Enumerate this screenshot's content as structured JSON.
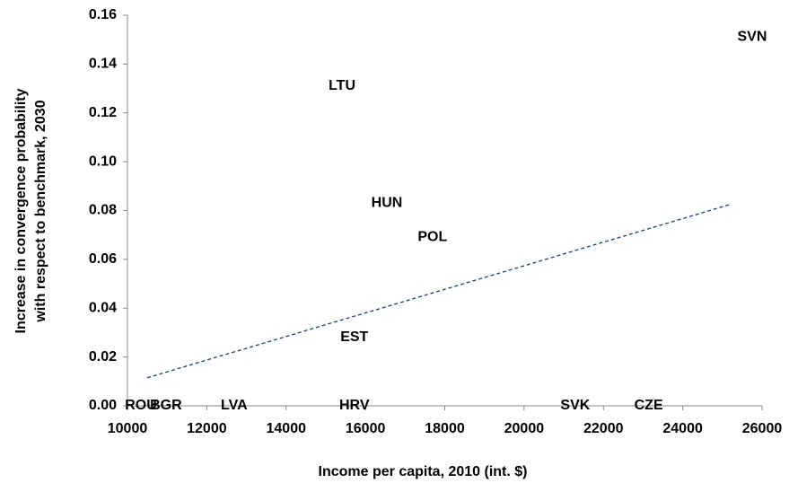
{
  "chart_data": {
    "type": "scatter",
    "xlabel": "Income per capita, 2010 (int. $)",
    "ylabel": [
      "Increase in convergence probability",
      "with respect to benchmark, 2030"
    ],
    "points": [
      {
        "label": "ROU",
        "x": 10340,
        "y": 0
      },
      {
        "label": "BGR",
        "x": 10970,
        "y": 0
      },
      {
        "label": "LVA",
        "x": 12690,
        "y": 0
      },
      {
        "label": "HRV",
        "x": 15720,
        "y": 0
      },
      {
        "label": "SVK",
        "x": 21290,
        "y": 0
      },
      {
        "label": "CZE",
        "x": 23140,
        "y": 0
      },
      {
        "label": "SVN",
        "x": 25750,
        "y": 0.151
      },
      {
        "label": "LTU",
        "x": 15410,
        "y": 0.131
      },
      {
        "label": "HUN",
        "x": 16540,
        "y": 0.083
      },
      {
        "label": "POL",
        "x": 17690,
        "y": 0.069
      },
      {
        "label": "EST",
        "x": 15720,
        "y": 0.028
      }
    ],
    "trendline": {
      "x": [
        10500,
        25200
      ],
      "values": [
        0.0115,
        0.0825
      ],
      "color": "#1f3f6e"
    },
    "xlim": [
      10000,
      26000
    ],
    "xticks": [
      10000,
      12000,
      14000,
      16000,
      18000,
      20000,
      22000,
      24000,
      26000
    ],
    "ylim": [
      0,
      0.16
    ],
    "yticks": [
      {
        "value": 0,
        "label": "0.00"
      },
      {
        "value": 0.02,
        "label": "0.02"
      },
      {
        "value": 0.04,
        "label": "0.04"
      },
      {
        "value": 0.06,
        "label": "0.06"
      },
      {
        "value": 0.08,
        "label": "0.08"
      },
      {
        "value": 0.1,
        "label": "0.10"
      },
      {
        "value": 0.12,
        "label": "0.12"
      },
      {
        "value": 0.14,
        "label": "0.14"
      },
      {
        "value": 0.16,
        "label": "0.16"
      }
    ]
  }
}
